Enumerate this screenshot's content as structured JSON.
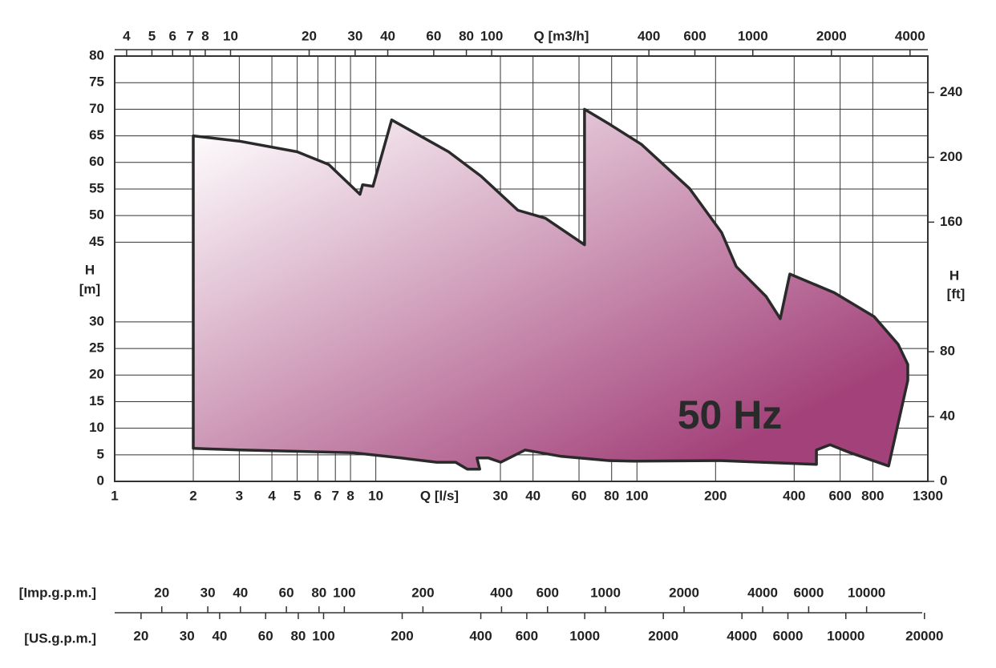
{
  "chart_data": {
    "type": "area",
    "title": "50 Hz",
    "color": "#a3427a",
    "log_x": true,
    "grid": true,
    "xlabel": "Q [l/s]",
    "xlim": [
      1,
      1300
    ],
    "xticks": [
      1,
      2,
      3,
      4,
      5,
      6,
      7,
      8,
      10,
      30,
      40,
      60,
      80,
      100,
      200,
      400,
      600,
      800,
      1300
    ],
    "ylabel": [
      "H",
      "[m]"
    ],
    "ylim": [
      0,
      80
    ],
    "yticks": [
      0,
      5,
      10,
      15,
      20,
      25,
      30,
      45,
      50,
      55,
      60,
      65,
      70,
      75,
      80
    ],
    "y2label": [
      "H",
      "[ft]"
    ],
    "y2lim": [
      0,
      262.5
    ],
    "y2ticks": [
      0,
      40,
      80,
      160,
      200,
      240
    ],
    "x2label": "Q [m3/h]",
    "x2lim": [
      3.6,
      4680
    ],
    "x2ticks": [
      4,
      5,
      6,
      7,
      8,
      10,
      20,
      30,
      40,
      60,
      80,
      100,
      400,
      600,
      1000,
      2000,
      4000
    ],
    "imp_axis": {
      "label": "[Imp.g.p.m.]",
      "lim": [
        13.2,
        17160
      ],
      "ticks": [
        20,
        30,
        40,
        60,
        80,
        100,
        200,
        400,
        600,
        1000,
        2000,
        4000,
        6000,
        10000
      ]
    },
    "us_axis": {
      "label": "[US.g.p.m.]",
      "lim": [
        15.85,
        20605
      ],
      "ticks": [
        20,
        30,
        40,
        60,
        80,
        100,
        200,
        400,
        600,
        1000,
        2000,
        4000,
        6000,
        10000,
        20000
      ]
    },
    "x": [
      2,
      3,
      5,
      6.6,
      8.7,
      8.9,
      9.75,
      11.5,
      19,
      25.3,
      35,
      44.6,
      63,
      63,
      78.5,
      104,
      159,
      211,
      240,
      312,
      354,
      385,
      569,
      809,
      1000,
      1089,
      1089,
      920,
      655,
      549,
      487,
      487,
      211,
      97,
      78.5,
      51.4,
      37.3,
      30.1,
      27,
      24.4,
      25,
      22.4,
      20.2,
      17.1,
      12.5,
      8.2,
      3,
      2
    ],
    "values": [
      65,
      64,
      62,
      59.6,
      54,
      55.8,
      55.5,
      68,
      62,
      57.4,
      51,
      49.5,
      44.5,
      70,
      67.2,
      63.4,
      55.1,
      46.8,
      40.4,
      34.8,
      30.6,
      39,
      35.5,
      31,
      25.8,
      22,
      19,
      2.9,
      5.4,
      6.9,
      5.9,
      3.2,
      3.9,
      3.8,
      3.9,
      4.7,
      5.9,
      3.6,
      4.4,
      4.4,
      2.3,
      2.3,
      3.6,
      3.6,
      4.4,
      5.4,
      5.9,
      6.2
    ]
  }
}
